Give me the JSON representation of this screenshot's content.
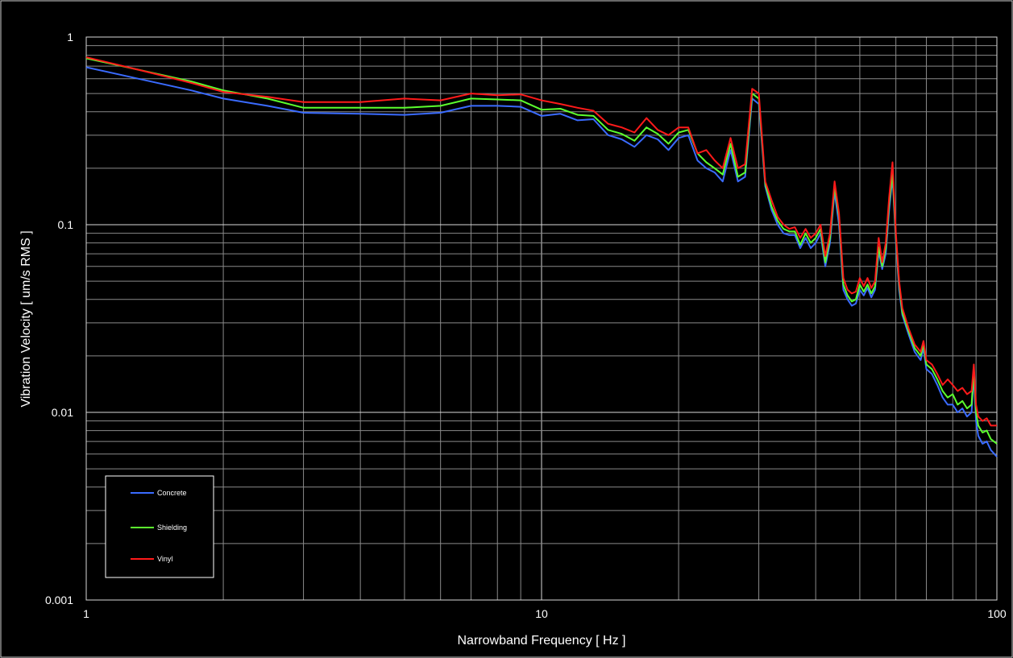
{
  "chart_data": {
    "type": "line",
    "title": "",
    "xlabel": "Narrowband Frequency  [ Hz ]",
    "ylabel": "Vibration Velocity [ um/s RMS ]",
    "x_scale": "log",
    "y_scale": "log",
    "xlim": [
      1,
      100
    ],
    "ylim": [
      0.001,
      1
    ],
    "x_ticks": [
      "1",
      "10",
      "100"
    ],
    "y_ticks": [
      "1",
      "0.1",
      "0.01",
      "0.001"
    ],
    "grid": true,
    "legend_position": "bottom-left",
    "series": [
      {
        "name": "Concrete",
        "color": "#3a6bff",
        "points": [
          [
            1,
            0.69
          ],
          [
            1.3,
            0.6
          ],
          [
            1.7,
            0.52
          ],
          [
            2,
            0.47
          ],
          [
            2.5,
            0.43
          ],
          [
            3,
            0.395
          ],
          [
            4,
            0.39
          ],
          [
            5,
            0.385
          ],
          [
            6,
            0.395
          ],
          [
            7,
            0.43
          ],
          [
            8,
            0.43
          ],
          [
            9,
            0.425
          ],
          [
            10,
            0.38
          ],
          [
            11,
            0.39
          ],
          [
            12,
            0.36
          ],
          [
            13,
            0.365
          ],
          [
            14,
            0.3
          ],
          [
            15,
            0.285
          ],
          [
            16,
            0.26
          ],
          [
            17,
            0.3
          ],
          [
            18,
            0.285
          ],
          [
            19,
            0.25
          ],
          [
            20,
            0.29
          ],
          [
            21,
            0.3
          ],
          [
            22,
            0.22
          ],
          [
            23,
            0.2
          ],
          [
            24,
            0.19
          ],
          [
            25,
            0.17
          ],
          [
            26,
            0.25
          ],
          [
            27,
            0.17
          ],
          [
            28,
            0.18
          ],
          [
            29,
            0.47
          ],
          [
            30,
            0.44
          ],
          [
            31,
            0.16
          ],
          [
            32,
            0.12
          ],
          [
            33,
            0.1
          ],
          [
            34,
            0.09
          ],
          [
            35,
            0.088
          ],
          [
            36,
            0.088
          ],
          [
            37,
            0.075
          ],
          [
            38,
            0.085
          ],
          [
            39,
            0.075
          ],
          [
            40,
            0.08
          ],
          [
            41,
            0.09
          ],
          [
            42,
            0.06
          ],
          [
            43,
            0.08
          ],
          [
            44,
            0.15
          ],
          [
            45,
            0.1
          ],
          [
            46,
            0.045
          ],
          [
            47,
            0.04
          ],
          [
            48,
            0.037
          ],
          [
            49,
            0.038
          ],
          [
            50,
            0.045
          ],
          [
            51,
            0.042
          ],
          [
            52,
            0.046
          ],
          [
            53,
            0.041
          ],
          [
            54,
            0.045
          ],
          [
            55,
            0.072
          ],
          [
            56,
            0.058
          ],
          [
            57,
            0.07
          ],
          [
            58,
            0.12
          ],
          [
            59,
            0.18
          ],
          [
            60,
            0.08
          ],
          [
            61,
            0.045
          ],
          [
            62,
            0.033
          ],
          [
            64,
            0.026
          ],
          [
            66,
            0.021
          ],
          [
            68,
            0.019
          ],
          [
            69,
            0.022
          ],
          [
            70,
            0.017
          ],
          [
            72,
            0.016
          ],
          [
            74,
            0.014
          ],
          [
            76,
            0.012
          ],
          [
            78,
            0.011
          ],
          [
            80,
            0.011
          ],
          [
            82,
            0.01
          ],
          [
            84,
            0.0105
          ],
          [
            86,
            0.0095
          ],
          [
            88,
            0.01
          ],
          [
            89,
            0.016
          ],
          [
            90,
            0.009
          ],
          [
            91,
            0.0075
          ],
          [
            93,
            0.0068
          ],
          [
            95,
            0.007
          ],
          [
            97,
            0.0063
          ],
          [
            100,
            0.0058
          ]
        ]
      },
      {
        "name": "Shielding",
        "color": "#5cff2e",
        "points": [
          [
            1,
            0.77
          ],
          [
            1.3,
            0.67
          ],
          [
            1.7,
            0.58
          ],
          [
            2,
            0.52
          ],
          [
            2.5,
            0.47
          ],
          [
            3,
            0.42
          ],
          [
            4,
            0.42
          ],
          [
            5,
            0.42
          ],
          [
            6,
            0.43
          ],
          [
            7,
            0.47
          ],
          [
            8,
            0.465
          ],
          [
            9,
            0.46
          ],
          [
            10,
            0.41
          ],
          [
            11,
            0.415
          ],
          [
            12,
            0.385
          ],
          [
            13,
            0.38
          ],
          [
            14,
            0.32
          ],
          [
            15,
            0.305
          ],
          [
            16,
            0.28
          ],
          [
            17,
            0.33
          ],
          [
            18,
            0.305
          ],
          [
            19,
            0.27
          ],
          [
            20,
            0.31
          ],
          [
            21,
            0.32
          ],
          [
            22,
            0.24
          ],
          [
            23,
            0.215
          ],
          [
            24,
            0.2
          ],
          [
            25,
            0.185
          ],
          [
            26,
            0.27
          ],
          [
            27,
            0.18
          ],
          [
            28,
            0.19
          ],
          [
            29,
            0.5
          ],
          [
            30,
            0.47
          ],
          [
            31,
            0.165
          ],
          [
            32,
            0.125
          ],
          [
            33,
            0.105
          ],
          [
            34,
            0.095
          ],
          [
            35,
            0.092
          ],
          [
            36,
            0.092
          ],
          [
            37,
            0.078
          ],
          [
            38,
            0.09
          ],
          [
            39,
            0.08
          ],
          [
            40,
            0.085
          ],
          [
            41,
            0.095
          ],
          [
            42,
            0.063
          ],
          [
            43,
            0.085
          ],
          [
            44,
            0.16
          ],
          [
            45,
            0.11
          ],
          [
            46,
            0.048
          ],
          [
            47,
            0.042
          ],
          [
            48,
            0.039
          ],
          [
            49,
            0.04
          ],
          [
            50,
            0.048
          ],
          [
            51,
            0.044
          ],
          [
            52,
            0.048
          ],
          [
            53,
            0.043
          ],
          [
            54,
            0.047
          ],
          [
            55,
            0.076
          ],
          [
            56,
            0.06
          ],
          [
            57,
            0.075
          ],
          [
            58,
            0.13
          ],
          [
            59,
            0.19
          ],
          [
            60,
            0.085
          ],
          [
            61,
            0.048
          ],
          [
            62,
            0.034
          ],
          [
            64,
            0.027
          ],
          [
            66,
            0.022
          ],
          [
            68,
            0.02
          ],
          [
            69,
            0.023
          ],
          [
            70,
            0.018
          ],
          [
            72,
            0.017
          ],
          [
            74,
            0.015
          ],
          [
            76,
            0.013
          ],
          [
            78,
            0.012
          ],
          [
            80,
            0.0125
          ],
          [
            82,
            0.011
          ],
          [
            84,
            0.0115
          ],
          [
            86,
            0.0105
          ],
          [
            88,
            0.011
          ],
          [
            89,
            0.017
          ],
          [
            90,
            0.01
          ],
          [
            91,
            0.0085
          ],
          [
            93,
            0.0078
          ],
          [
            95,
            0.008
          ],
          [
            97,
            0.0072
          ],
          [
            100,
            0.0068
          ]
        ]
      },
      {
        "name": "Vinyl",
        "color": "#ff1a1a",
        "points": [
          [
            1,
            0.78
          ],
          [
            1.3,
            0.67
          ],
          [
            1.7,
            0.57
          ],
          [
            2,
            0.51
          ],
          [
            2.5,
            0.48
          ],
          [
            3,
            0.45
          ],
          [
            4,
            0.45
          ],
          [
            5,
            0.47
          ],
          [
            6,
            0.46
          ],
          [
            7,
            0.5
          ],
          [
            8,
            0.49
          ],
          [
            9,
            0.495
          ],
          [
            10,
            0.46
          ],
          [
            11,
            0.44
          ],
          [
            12,
            0.42
          ],
          [
            13,
            0.405
          ],
          [
            14,
            0.345
          ],
          [
            15,
            0.33
          ],
          [
            16,
            0.31
          ],
          [
            17,
            0.37
          ],
          [
            18,
            0.32
          ],
          [
            19,
            0.3
          ],
          [
            20,
            0.33
          ],
          [
            21,
            0.33
          ],
          [
            22,
            0.24
          ],
          [
            23,
            0.25
          ],
          [
            24,
            0.22
          ],
          [
            25,
            0.2
          ],
          [
            26,
            0.29
          ],
          [
            27,
            0.2
          ],
          [
            28,
            0.21
          ],
          [
            29,
            0.53
          ],
          [
            30,
            0.5
          ],
          [
            31,
            0.17
          ],
          [
            32,
            0.135
          ],
          [
            33,
            0.11
          ],
          [
            34,
            0.1
          ],
          [
            35,
            0.095
          ],
          [
            36,
            0.097
          ],
          [
            37,
            0.085
          ],
          [
            38,
            0.095
          ],
          [
            39,
            0.085
          ],
          [
            40,
            0.09
          ],
          [
            41,
            0.1
          ],
          [
            42,
            0.068
          ],
          [
            43,
            0.09
          ],
          [
            44,
            0.17
          ],
          [
            45,
            0.115
          ],
          [
            46,
            0.052
          ],
          [
            47,
            0.045
          ],
          [
            48,
            0.043
          ],
          [
            49,
            0.044
          ],
          [
            50,
            0.052
          ],
          [
            51,
            0.047
          ],
          [
            52,
            0.052
          ],
          [
            53,
            0.046
          ],
          [
            54,
            0.05
          ],
          [
            55,
            0.085
          ],
          [
            56,
            0.063
          ],
          [
            57,
            0.08
          ],
          [
            58,
            0.14
          ],
          [
            59,
            0.215
          ],
          [
            60,
            0.09
          ],
          [
            61,
            0.05
          ],
          [
            62,
            0.036
          ],
          [
            64,
            0.028
          ],
          [
            66,
            0.023
          ],
          [
            68,
            0.021
          ],
          [
            69,
            0.024
          ],
          [
            70,
            0.019
          ],
          [
            72,
            0.018
          ],
          [
            74,
            0.016
          ],
          [
            76,
            0.014
          ],
          [
            78,
            0.015
          ],
          [
            80,
            0.014
          ],
          [
            82,
            0.013
          ],
          [
            84,
            0.0135
          ],
          [
            86,
            0.0125
          ],
          [
            88,
            0.013
          ],
          [
            89,
            0.018
          ],
          [
            90,
            0.011
          ],
          [
            91,
            0.0095
          ],
          [
            93,
            0.009
          ],
          [
            95,
            0.0093
          ],
          [
            97,
            0.0085
          ],
          [
            100,
            0.0085
          ]
        ]
      }
    ]
  }
}
